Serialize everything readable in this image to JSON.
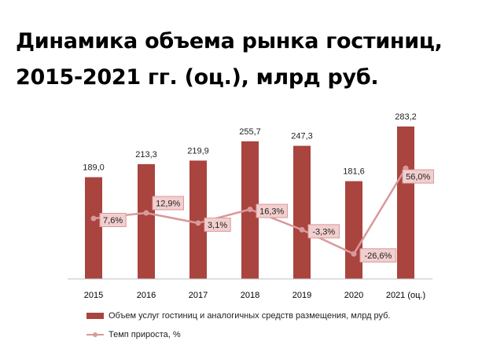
{
  "title": {
    "line1": "Динамика объема рынка гостиниц,",
    "line2": "2015-2021 гг. (оц.), млрд руб."
  },
  "colors": {
    "bar": "#a9443f",
    "line": "#d9999a",
    "label_box": "#f2cfcf",
    "label_border": "#d9999a",
    "axis": "#bfbfbf"
  },
  "chart_data": {
    "type": "bar",
    "categories": [
      "2015",
      "2016",
      "2017",
      "2018",
      "2019",
      "2020",
      "2021 (оц.)"
    ],
    "series": [
      {
        "name": "Объем услуг гостиниц и аналогичных средств размещения, млрд руб.",
        "type": "bar",
        "values": [
          189.0,
          213.3,
          219.9,
          255.7,
          247.3,
          181.6,
          283.2
        ],
        "labels": [
          "189,0",
          "213,3",
          "219,9",
          "255,7",
          "247,3",
          "181,6",
          "283,2"
        ]
      },
      {
        "name": "Темп прироста, %",
        "type": "line",
        "values": [
          7.6,
          12.9,
          3.1,
          16.3,
          -3.3,
          -26.6,
          56.0
        ],
        "labels": [
          "7,6%",
          "12,9%",
          "3,1%",
          "16,3%",
          "-3,3%",
          "-26,6%",
          "56,0%"
        ]
      }
    ],
    "legend_position": "bottom",
    "grid": false
  }
}
